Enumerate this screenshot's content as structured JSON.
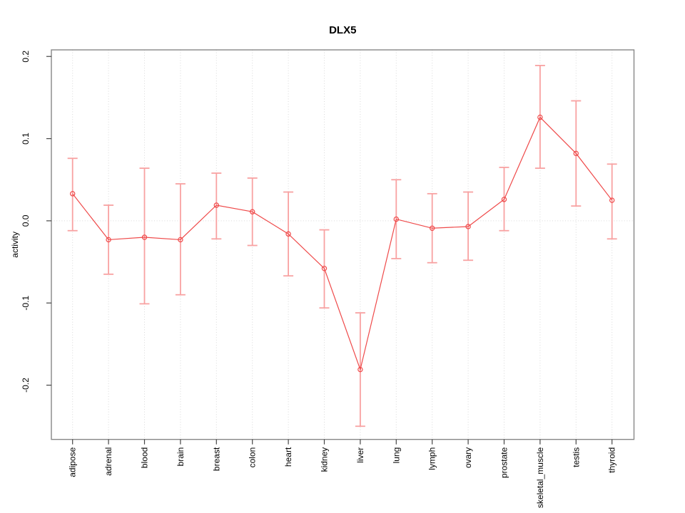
{
  "chart_data": {
    "type": "line",
    "title": "DLX5",
    "xlabel": "",
    "ylabel": "activity",
    "legend_position": "none",
    "categories": [
      "adipose",
      "adrenal",
      "blood",
      "brain",
      "breast",
      "colon",
      "heart",
      "kidney",
      "liver",
      "lung",
      "lymph",
      "ovary",
      "prostate",
      "skeletal_muscle",
      "testis",
      "thyroid"
    ],
    "series": [
      {
        "name": "activity",
        "values": [
          0.033,
          -0.023,
          -0.02,
          -0.023,
          0.019,
          0.011,
          -0.016,
          -0.058,
          -0.181,
          0.002,
          -0.009,
          -0.007,
          0.026,
          0.126,
          0.082,
          0.025
        ],
        "err_high": [
          0.076,
          0.019,
          0.064,
          0.045,
          0.058,
          0.052,
          0.035,
          -0.011,
          -0.112,
          0.05,
          0.033,
          0.035,
          0.065,
          0.189,
          0.146,
          0.069
        ],
        "err_low": [
          -0.012,
          -0.065,
          -0.101,
          -0.09,
          -0.022,
          -0.03,
          -0.067,
          -0.106,
          -0.25,
          -0.046,
          -0.051,
          -0.048,
          -0.012,
          0.064,
          0.018,
          -0.022
        ]
      }
    ],
    "yticks": [
      -0.2,
      -0.1,
      0.0,
      0.1,
      0.2
    ],
    "ytick_labels": [
      "-0.2",
      "-0.1",
      "0.0",
      "0.1",
      "0.2"
    ],
    "ylim": [
      -0.266,
      0.208
    ],
    "grid": {
      "vertical_per_category": true,
      "horizontal_zero_line": true,
      "style": "dotted"
    },
    "marker": "open-circle",
    "colors": {
      "line": "#ef4a4a",
      "marker": "#ef4a4a",
      "error_bar": "#f8a2a2",
      "gridline": "#d9d9d9",
      "zero_line": "#d9d9d9",
      "box": "#878787",
      "tick": "#454545",
      "text": "#000000",
      "background": "#ffffff"
    }
  }
}
